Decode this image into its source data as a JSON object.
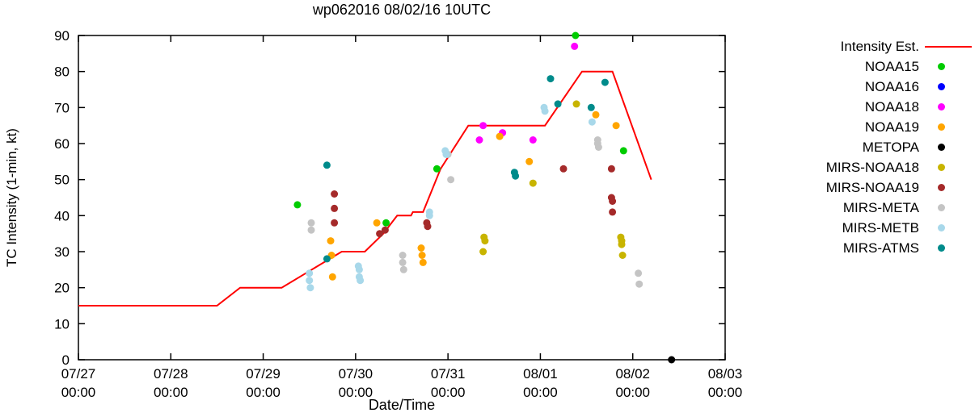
{
  "title": "wp062016 08/02/16 10UTC",
  "axes": {
    "ylabel": "TC Intensity (1-min, kt)",
    "xlabel": "Date/Time",
    "y_ticks": [
      0,
      10,
      20,
      30,
      40,
      50,
      60,
      70,
      80,
      90
    ],
    "x_ticks": [
      {
        "date": "07/27",
        "time": "00:00"
      },
      {
        "date": "07/28",
        "time": "00:00"
      },
      {
        "date": "07/29",
        "time": "00:00"
      },
      {
        "date": "07/30",
        "time": "00:00"
      },
      {
        "date": "07/31",
        "time": "00:00"
      },
      {
        "date": "08/01",
        "time": "00:00"
      },
      {
        "date": "08/02",
        "time": "00:00"
      },
      {
        "date": "08/03",
        "time": "00:00"
      }
    ]
  },
  "chart_data": {
    "type": "line+scatter",
    "title": "wp062016 08/02/16 10UTC",
    "xlabel": "Date/Time",
    "ylabel": "TC Intensity (1-min, kt)",
    "ylim": [
      0,
      90
    ],
    "xlim_days": [
      0,
      7
    ],
    "x_axis_note": "x values are days since 07/27 00:00",
    "grid": false,
    "legend_position": "right-outside",
    "intensity_line": {
      "name": "Intensity Est.",
      "color": "#ff0000",
      "points": [
        [
          0,
          15
        ],
        [
          1.5,
          15
        ],
        [
          1.75,
          20
        ],
        [
          2.2,
          20
        ],
        [
          2.85,
          30
        ],
        [
          3.1,
          30
        ],
        [
          3.3,
          35
        ],
        [
          3.45,
          40
        ],
        [
          3.6,
          40
        ],
        [
          3.62,
          41
        ],
        [
          3.73,
          41
        ],
        [
          3.92,
          53
        ],
        [
          4.22,
          65
        ],
        [
          5.05,
          65
        ],
        [
          5.45,
          80
        ],
        [
          5.78,
          80
        ],
        [
          6.2,
          50
        ]
      ]
    },
    "series": [
      {
        "name": "NOAA15",
        "color": "#00cc00",
        "points": [
          [
            2.37,
            43
          ],
          [
            3.33,
            38
          ],
          [
            3.88,
            53
          ],
          [
            5.38,
            90
          ],
          [
            5.9,
            58
          ]
        ]
      },
      {
        "name": "NOAA16",
        "color": "#0000ff",
        "points": []
      },
      {
        "name": "NOAA18",
        "color": "#ff00ff",
        "points": [
          [
            4.34,
            61
          ],
          [
            4.38,
            65
          ],
          [
            4.59,
            63
          ],
          [
            4.92,
            61
          ],
          [
            5.37,
            87
          ]
        ]
      },
      {
        "name": "NOAA19",
        "color": "#ffa500",
        "points": [
          [
            2.73,
            33
          ],
          [
            2.74,
            29
          ],
          [
            2.75,
            23
          ],
          [
            3.23,
            38
          ],
          [
            3.71,
            31
          ],
          [
            3.72,
            29
          ],
          [
            3.73,
            27
          ],
          [
            4.56,
            62
          ],
          [
            4.88,
            55
          ],
          [
            5.6,
            68
          ],
          [
            5.82,
            65
          ]
        ]
      },
      {
        "name": "METOPA",
        "color": "#000000",
        "points": [
          [
            6.42,
            0
          ]
        ]
      },
      {
        "name": "MIRS-NOAA18",
        "color": "#c8b400",
        "points": [
          [
            4.38,
            30
          ],
          [
            4.39,
            34
          ],
          [
            4.4,
            33
          ],
          [
            4.92,
            49
          ],
          [
            5.39,
            71
          ],
          [
            5.87,
            34
          ],
          [
            5.88,
            33
          ],
          [
            5.88,
            32
          ],
          [
            5.89,
            29
          ]
        ]
      },
      {
        "name": "MIRS-NOAA19",
        "color": "#a52a2a",
        "points": [
          [
            2.77,
            46
          ],
          [
            2.77,
            42
          ],
          [
            2.77,
            38
          ],
          [
            3.26,
            35
          ],
          [
            3.32,
            36
          ],
          [
            3.77,
            38
          ],
          [
            3.78,
            37
          ],
          [
            5.25,
            53
          ],
          [
            5.77,
            53
          ],
          [
            5.77,
            45
          ],
          [
            5.78,
            44
          ],
          [
            5.78,
            41
          ]
        ]
      },
      {
        "name": "MIRS-META",
        "color": "#c4c4c4",
        "points": [
          [
            2.52,
            38
          ],
          [
            2.52,
            36
          ],
          [
            3.51,
            29
          ],
          [
            3.51,
            27
          ],
          [
            3.52,
            25
          ],
          [
            4.0,
            57
          ],
          [
            4.03,
            50
          ],
          [
            5.62,
            61
          ],
          [
            5.62,
            60
          ],
          [
            5.63,
            59
          ],
          [
            6.06,
            24
          ],
          [
            6.07,
            21
          ]
        ]
      },
      {
        "name": "MIRS-METB",
        "color": "#a8d8ea",
        "points": [
          [
            2.5,
            24
          ],
          [
            2.5,
            22
          ],
          [
            2.51,
            20
          ],
          [
            3.03,
            26
          ],
          [
            3.04,
            25
          ],
          [
            3.04,
            23
          ],
          [
            3.05,
            22
          ],
          [
            3.8,
            41
          ],
          [
            3.8,
            40
          ],
          [
            3.97,
            58
          ],
          [
            3.98,
            57
          ],
          [
            5.04,
            70
          ],
          [
            5.05,
            69
          ],
          [
            5.56,
            66
          ]
        ]
      },
      {
        "name": "MIRS-ATMS",
        "color": "#008b8b",
        "points": [
          [
            2.69,
            54
          ],
          [
            2.69,
            28
          ],
          [
            4.72,
            52
          ],
          [
            4.73,
            51
          ],
          [
            5.11,
            78
          ],
          [
            5.19,
            71
          ],
          [
            5.55,
            70
          ],
          [
            5.7,
            77
          ]
        ]
      }
    ]
  },
  "legend": {
    "entries": [
      {
        "label": "Intensity Est.",
        "marker": "line",
        "color": "#ff0000"
      },
      {
        "label": "NOAA15",
        "marker": "dot",
        "color": "#00cc00"
      },
      {
        "label": "NOAA16",
        "marker": "dot",
        "color": "#0000ff"
      },
      {
        "label": "NOAA18",
        "marker": "dot",
        "color": "#ff00ff"
      },
      {
        "label": "NOAA19",
        "marker": "dot",
        "color": "#ffa500"
      },
      {
        "label": "METOPA",
        "marker": "dot",
        "color": "#000000"
      },
      {
        "label": "MIRS-NOAA18",
        "marker": "dot",
        "color": "#c8b400"
      },
      {
        "label": "MIRS-NOAA19",
        "marker": "dot",
        "color": "#a52a2a"
      },
      {
        "label": "MIRS-META",
        "marker": "dot",
        "color": "#c4c4c4"
      },
      {
        "label": "MIRS-METB",
        "marker": "dot",
        "color": "#a8d8ea"
      },
      {
        "label": "MIRS-ATMS",
        "marker": "dot",
        "color": "#008b8b"
      }
    ]
  }
}
